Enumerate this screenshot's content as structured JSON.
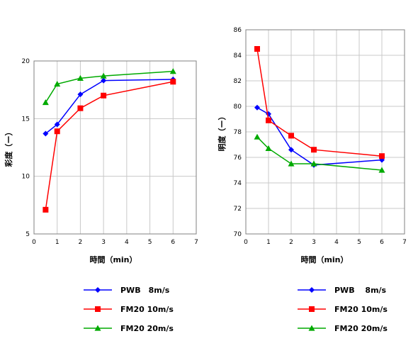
{
  "chart_data": [
    {
      "type": "line",
      "xlabel": "時間（min）",
      "ylabel": "彩度（ー）",
      "xlim": [
        0,
        7
      ],
      "ylim": [
        5,
        20
      ],
      "xticks": [
        0,
        1,
        2,
        3,
        4,
        5,
        6,
        7
      ],
      "yticks": [
        5,
        10,
        15,
        20
      ],
      "grid": true,
      "legend_position": "below",
      "series": [
        {
          "name": "PWB　8m/s",
          "color": "#0000ff",
          "marker": "diamond",
          "x": [
            0.5,
            1,
            2,
            3,
            6
          ],
          "y": [
            13.7,
            14.5,
            17.1,
            18.3,
            18.4
          ]
        },
        {
          "name": "FM20 10m/s",
          "color": "#ff0000",
          "marker": "square",
          "x": [
            0.5,
            1,
            2,
            3,
            6
          ],
          "y": [
            7.1,
            13.9,
            15.9,
            17.0,
            18.2
          ]
        },
        {
          "name": "FM20 20m/s",
          "color": "#00aa00",
          "marker": "triangle",
          "x": [
            0.5,
            1,
            2,
            3,
            6
          ],
          "y": [
            16.4,
            18.0,
            18.5,
            18.7,
            19.1
          ]
        }
      ]
    },
    {
      "type": "line",
      "xlabel": "時間（min）",
      "ylabel": "明度（ー）",
      "xlim": [
        0,
        7
      ],
      "ylim": [
        70,
        86
      ],
      "xticks": [
        0,
        1,
        2,
        3,
        4,
        5,
        6,
        7
      ],
      "yticks": [
        70,
        72,
        74,
        76,
        78,
        80,
        82,
        84,
        86
      ],
      "grid": true,
      "legend_position": "below",
      "series": [
        {
          "name": "PWB　 8m/s",
          "color": "#0000ff",
          "marker": "diamond",
          "x": [
            0.5,
            1,
            2,
            3,
            6
          ],
          "y": [
            79.9,
            79.4,
            76.6,
            75.4,
            75.8
          ]
        },
        {
          "name": "FM20 10m/s",
          "color": "#ff0000",
          "marker": "square",
          "x": [
            0.5,
            1,
            2,
            3,
            6
          ],
          "y": [
            84.5,
            78.9,
            77.7,
            76.6,
            76.1
          ]
        },
        {
          "name": "FM20 20m/s",
          "color": "#00aa00",
          "marker": "triangle",
          "x": [
            0.5,
            1,
            2,
            3,
            6
          ],
          "y": [
            77.6,
            76.7,
            75.5,
            75.5,
            75.0
          ]
        }
      ]
    }
  ]
}
